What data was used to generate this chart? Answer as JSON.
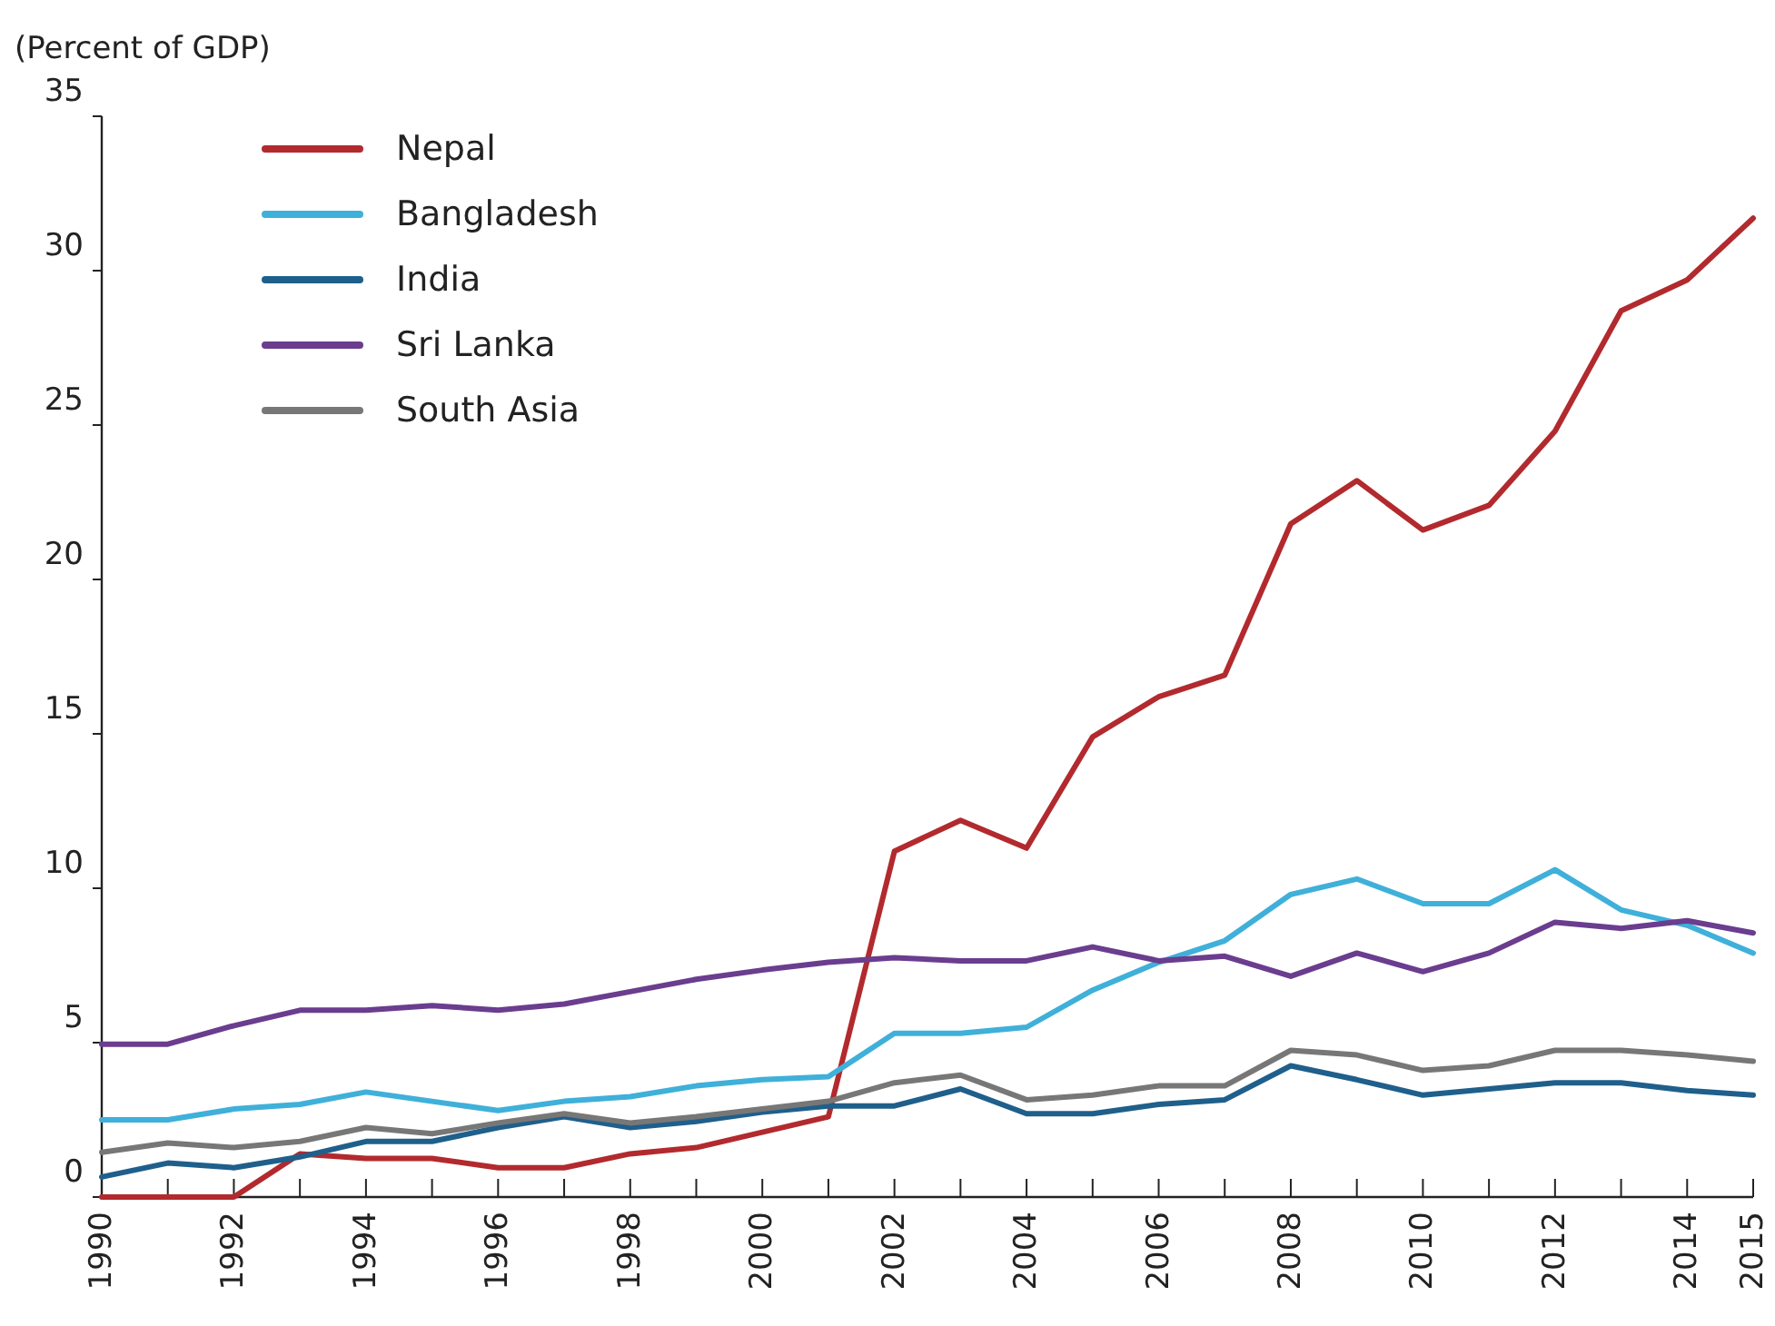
{
  "chart_data": {
    "type": "line",
    "ylabel": "(Percent of GDP)",
    "x": [
      1990,
      1991,
      1992,
      1993,
      1994,
      1995,
      1996,
      1997,
      1998,
      1999,
      2000,
      2001,
      2002,
      2003,
      2004,
      2005,
      2006,
      2007,
      2008,
      2009,
      2010,
      2011,
      2012,
      2013,
      2014,
      2015
    ],
    "series": [
      {
        "name": "Nepal",
        "color": "#b22a2e",
        "values": [
          0,
          0,
          0,
          1.4,
          1.25,
          1.25,
          0.95,
          0.95,
          1.4,
          1.6,
          2.1,
          2.6,
          11.2,
          12.2,
          11.3,
          14.9,
          16.2,
          16.9,
          21.8,
          23.2,
          21.6,
          22.4,
          24.8,
          28.7,
          29.7,
          31.7
        ]
      },
      {
        "name": "Bangladesh",
        "color": "#3fb0d9",
        "values": [
          2.5,
          2.5,
          2.85,
          3.0,
          3.4,
          3.1,
          2.8,
          3.1,
          3.25,
          3.6,
          3.8,
          3.9,
          5.3,
          5.3,
          5.5,
          6.7,
          7.6,
          8.3,
          9.8,
          10.3,
          9.5,
          9.5,
          10.6,
          9.3,
          8.8,
          7.9
        ]
      },
      {
        "name": "India",
        "color": "#1f5f8b",
        "values": [
          0.65,
          1.1,
          0.95,
          1.3,
          1.8,
          1.8,
          2.25,
          2.6,
          2.25,
          2.45,
          2.75,
          2.95,
          2.95,
          3.5,
          2.7,
          2.7,
          3.0,
          3.15,
          4.25,
          3.8,
          3.3,
          3.5,
          3.7,
          3.7,
          3.45,
          3.3
        ]
      },
      {
        "name": "Sri Lanka",
        "color": "#6a3d8f",
        "values": [
          4.95,
          4.95,
          5.55,
          6.05,
          6.05,
          6.2,
          6.05,
          6.25,
          6.65,
          7.05,
          7.35,
          7.6,
          7.75,
          7.65,
          7.65,
          8.1,
          7.65,
          7.8,
          7.15,
          7.9,
          7.3,
          7.9,
          8.9,
          8.7,
          8.95,
          8.55
        ]
      },
      {
        "name": "South Asia",
        "color": "#777777",
        "values": [
          1.45,
          1.75,
          1.6,
          1.8,
          2.25,
          2.05,
          2.4,
          2.7,
          2.4,
          2.6,
          2.85,
          3.1,
          3.7,
          3.95,
          3.15,
          3.3,
          3.6,
          3.6,
          4.75,
          4.6,
          4.1,
          4.25,
          4.75,
          4.75,
          4.6,
          4.4
        ]
      }
    ],
    "xlim": [
      1990,
      2015
    ],
    "xticks": [
      1990,
      {
        "value": 1991,
        "label": null
      },
      1992,
      {
        "value": 1993,
        "label": null
      },
      1994,
      {
        "value": 1995,
        "label": null
      },
      1996,
      {
        "value": 1997,
        "label": null
      },
      1998,
      {
        "value": 1999,
        "label": null
      },
      2000,
      {
        "value": 2001,
        "label": null
      },
      2002,
      {
        "value": 2003,
        "label": null
      },
      2004,
      {
        "value": 2005,
        "label": null
      },
      2006,
      {
        "value": 2007,
        "label": null
      },
      2008,
      {
        "value": 2009,
        "label": null
      },
      2010,
      {
        "value": 2011,
        "label": null
      },
      2012,
      {
        "value": 2013,
        "label": null
      },
      2014,
      2015
    ],
    "ylim": [
      0,
      35
    ],
    "yticks": [
      0,
      5,
      10,
      15,
      20,
      25,
      30,
      35
    ],
    "grid": false,
    "legend": "top left",
    "marker": "none",
    "line_style": "solid"
  }
}
